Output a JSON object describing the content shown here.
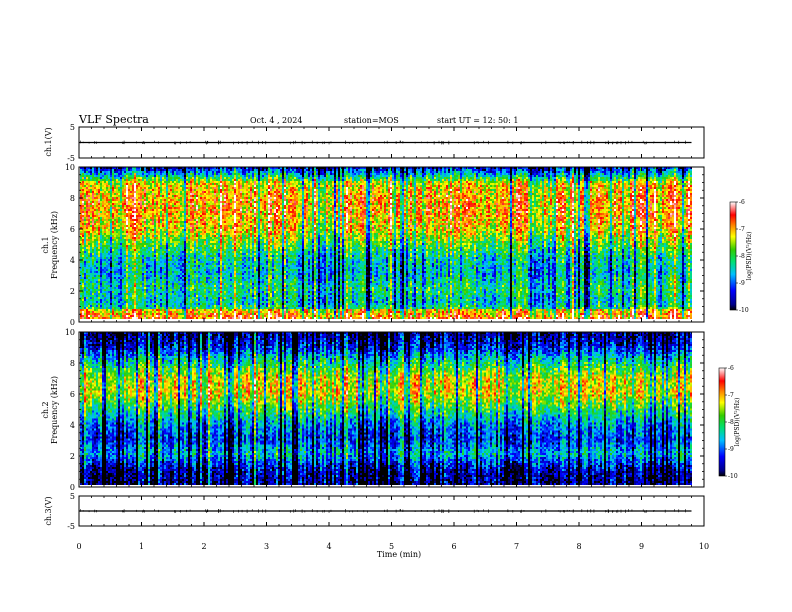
{
  "header": {
    "title": "VLF Spectra",
    "date": "Oct. 4 , 2024",
    "station": "station=MOS",
    "start": "start UT = 12: 50: 1"
  },
  "chart_data": [
    {
      "type": "line",
      "name": "ch1-waveform",
      "ylabel": "ch.1(V)",
      "ylim": [
        -5,
        5
      ],
      "yticks": [
        "5",
        "-5"
      ],
      "x": [
        0,
        1,
        2,
        3,
        4,
        5,
        6,
        7,
        8,
        9,
        9.8
      ],
      "values": [
        0,
        0,
        0,
        0,
        0,
        0,
        0,
        0,
        0,
        0,
        0
      ]
    },
    {
      "type": "heatmap",
      "name": "ch1-spectrogram",
      "ylabel": "ch.1\nFrequency (kHz)",
      "ylim": [
        0,
        10
      ],
      "yticks": [
        "0",
        "2",
        "4",
        "6",
        "8",
        "10"
      ],
      "xlim": [
        0,
        10
      ],
      "colorbar": {
        "label": "log(PSD)(V²/Hz)",
        "range": [
          -10,
          -6
        ],
        "ticks": [
          "-6",
          "-7",
          "-8",
          "-9",
          "-10"
        ]
      },
      "intensity_profile": {
        "freq_khz": [
          0,
          1,
          2,
          3,
          4,
          5,
          6,
          7,
          8,
          9,
          10
        ],
        "log_psd": [
          -7.5,
          -8.5,
          -8.2,
          -8.6,
          -8.4,
          -7.8,
          -7.2,
          -7.0,
          -7.0,
          -7.3,
          -9.5
        ]
      }
    },
    {
      "type": "heatmap",
      "name": "ch2-spectrogram",
      "ylabel": "ch.2\nFrequency (kHz)",
      "ylim": [
        0,
        10
      ],
      "yticks": [
        "0",
        "2",
        "4",
        "6",
        "8",
        "10"
      ],
      "xlim": [
        0,
        10
      ],
      "colorbar": {
        "label": "log(PSD)(V²/Hz)",
        "range": [
          -10,
          -6
        ],
        "ticks": [
          "-6",
          "-7",
          "-8",
          "-9",
          "-10"
        ]
      },
      "intensity_profile": {
        "freq_khz": [
          0,
          1,
          2,
          3,
          4,
          5,
          6,
          7,
          8,
          9,
          10
        ],
        "log_psd": [
          -9.8,
          -9.6,
          -8.6,
          -9.2,
          -8.8,
          -8.0,
          -7.3,
          -7.4,
          -8.2,
          -9.3,
          -9.8
        ]
      }
    },
    {
      "type": "line",
      "name": "ch3-waveform",
      "ylabel": "ch.3(V)",
      "ylim": [
        -5,
        5
      ],
      "yticks": [
        "5",
        "-5"
      ],
      "x": [
        0,
        1,
        2,
        3,
        4,
        5,
        6,
        7,
        8,
        9,
        9.8
      ],
      "values": [
        0,
        0,
        0,
        0,
        0,
        0,
        0,
        0,
        0,
        0,
        0
      ]
    }
  ],
  "xaxis": {
    "label": "Time (min)",
    "xlim": [
      0,
      10
    ],
    "ticks": [
      "0",
      "1",
      "2",
      "3",
      "4",
      "5",
      "6",
      "7",
      "8",
      "9",
      "10"
    ]
  }
}
